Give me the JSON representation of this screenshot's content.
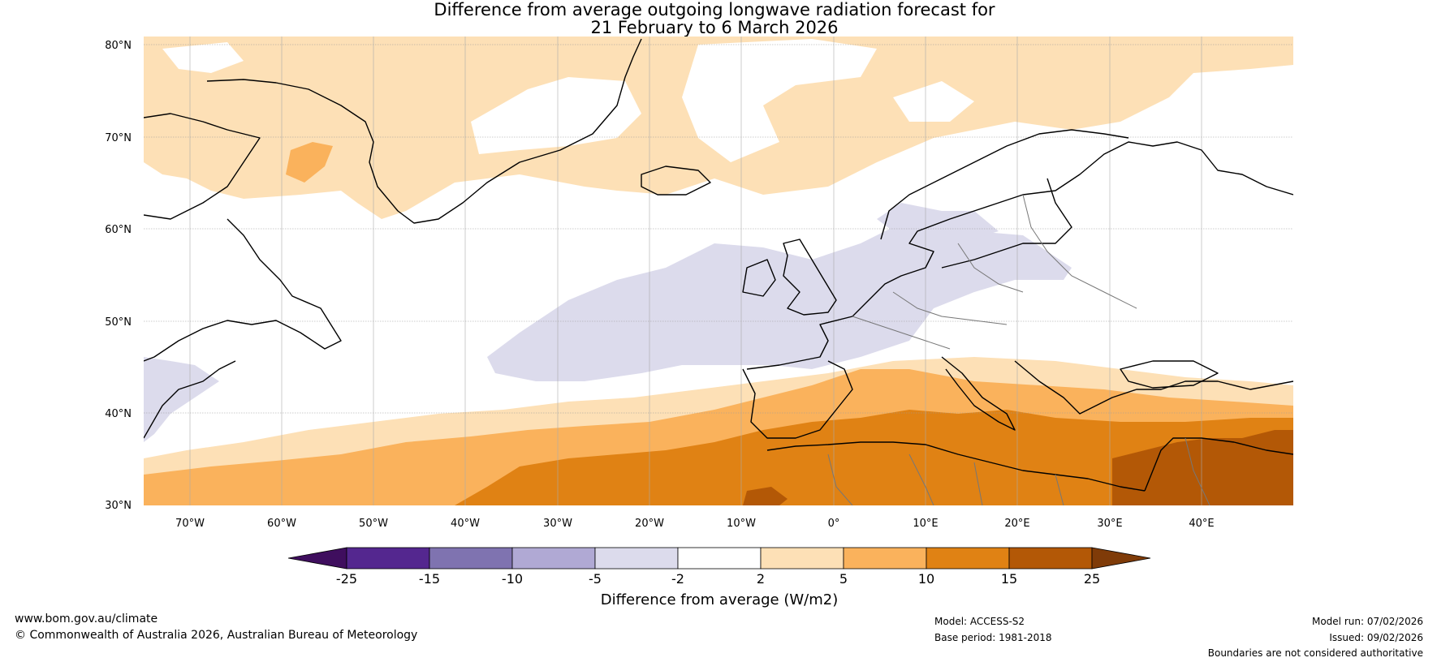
{
  "title": {
    "line1": "Difference from average outgoing longwave radiation forecast for",
    "line2": "21 February to 6 March 2026"
  },
  "map": {
    "lat_labels": [
      "80°N",
      "70°N",
      "60°N",
      "50°N",
      "40°N",
      "30°N"
    ],
    "lon_labels": [
      "70°W",
      "60°W",
      "50°W",
      "40°W",
      "30°W",
      "20°W",
      "10°W",
      "0°",
      "10°E",
      "20°E",
      "30°E",
      "40°E"
    ],
    "lat_range": [
      30,
      80
    ],
    "lon_range": [
      -75,
      50
    ]
  },
  "colorbar": {
    "ticks": [
      "-25",
      "-15",
      "-10",
      "-5",
      "-2",
      "2",
      "5",
      "10",
      "15",
      "25"
    ],
    "label": "Difference from average (W/m2)",
    "colors": [
      "#3f0e5e",
      "#54278f",
      "#7f73b0",
      "#b0a9d4",
      "#dcdbec",
      "#ffffff",
      "#fde0b6",
      "#fab25c",
      "#e08214",
      "#b35806",
      "#7f3b08"
    ]
  },
  "footer": {
    "website": "www.bom.gov.au/climate",
    "copyright": "© Commonwealth of Australia 2026, Australian Bureau of Meteorology",
    "model": "Model: ACCESS-S2",
    "base_period": "Base period: 1981-2018",
    "model_run": "Model run: 07/02/2026",
    "issued": "Issued: 09/02/2026",
    "disclaimer": "Boundaries are not considered authoritative"
  }
}
